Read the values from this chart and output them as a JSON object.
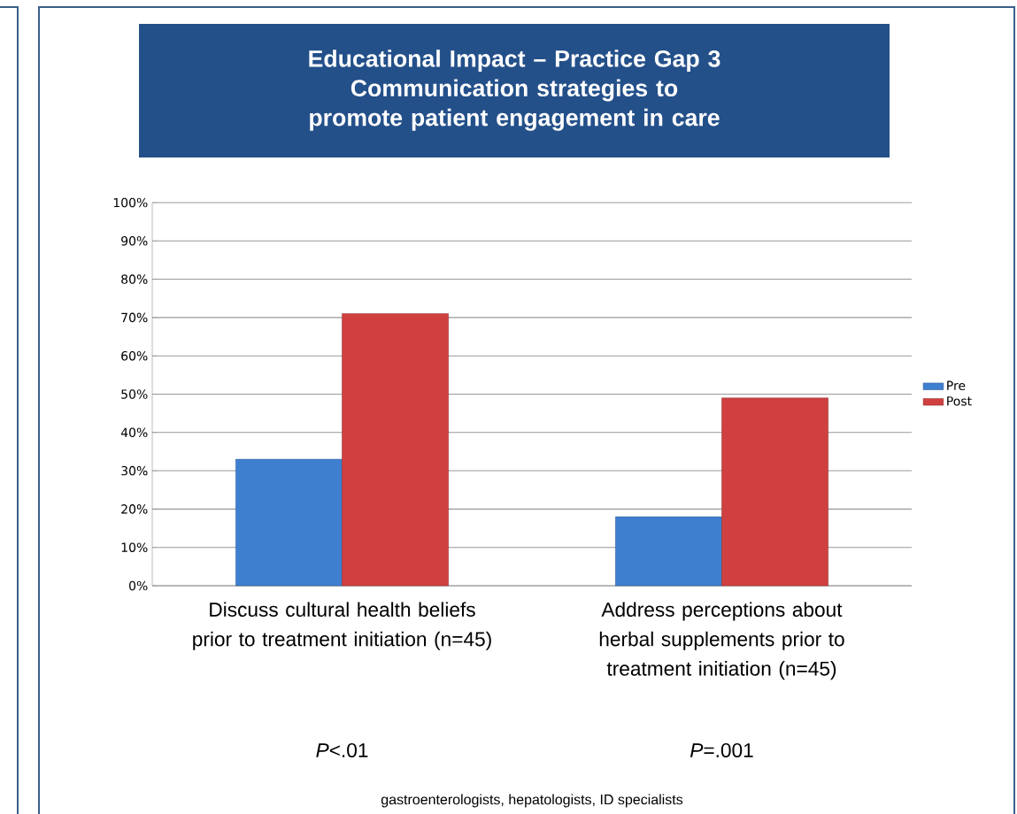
{
  "chart_data": {
    "type": "bar",
    "title": "Educational Impact – Practice Gap 3",
    "subtitle": "Communication strategies to promote patient engagement in care",
    "categories": [
      "Discuss cultural health beliefs prior to treatment initiation (n=45)",
      "Address perceptions about herbal supplements prior to treatment initiation (n=45)"
    ],
    "series": [
      {
        "name": "Pre",
        "color": "#3f7fd0",
        "values": [
          33,
          18
        ]
      },
      {
        "name": "Post",
        "color": "#d04040",
        "values": [
          71,
          49
        ]
      }
    ],
    "ylim": [
      0,
      100
    ],
    "yticks": [
      {
        "value": 0,
        "label": "0%"
      },
      {
        "value": 10,
        "label": "10%"
      },
      {
        "value": 20,
        "label": "20%"
      },
      {
        "value": 30,
        "label": "30%"
      },
      {
        "value": 40,
        "label": "40%"
      },
      {
        "value": 50,
        "label": "50%"
      },
      {
        "value": 60,
        "label": "60%"
      },
      {
        "value": 70,
        "label": "70%"
      },
      {
        "value": 80,
        "label": "80%"
      },
      {
        "value": 90,
        "label": "90%"
      },
      {
        "value": 100,
        "label": "100%"
      }
    ],
    "grid": "y",
    "legend": "right",
    "annotations": [
      "*P*<.01",
      "*P*=.001",
      "gastroenterologists,  hepatologists,  ID specialists"
    ]
  }
}
